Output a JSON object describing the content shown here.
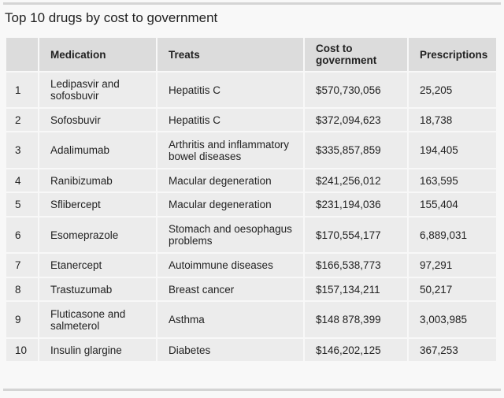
{
  "title": "Top 10 drugs by cost to government",
  "columns": [
    "",
    "Medication",
    "Treats",
    "Cost to government",
    "Prescriptions"
  ],
  "rows": [
    {
      "rank": "1",
      "medication": "Ledipasvir and sofosbuvir",
      "treats": "Hepatitis C",
      "cost": "$570,730,056",
      "prescriptions": "25,205"
    },
    {
      "rank": "2",
      "medication": "Sofosbuvir",
      "treats": "Hepatitis C",
      "cost": "$372,094,623",
      "prescriptions": "18,738"
    },
    {
      "rank": "3",
      "medication": "Adalimumab",
      "treats": "Arthritis and inflammatory bowel diseases",
      "cost": "$335,857,859",
      "prescriptions": "194,405"
    },
    {
      "rank": "4",
      "medication": "Ranibizumab",
      "treats": "Macular degeneration",
      "cost": "$241,256,012",
      "prescriptions": "163,595"
    },
    {
      "rank": "5",
      "medication": "Sflibercept",
      "treats": "Macular degeneration",
      "cost": "$231,194,036",
      "prescriptions": "155,404"
    },
    {
      "rank": "6",
      "medication": "Esomeprazole",
      "treats": "Stomach and oesophagus problems",
      "cost": "$170,554,177",
      "prescriptions": "6,889,031"
    },
    {
      "rank": "7",
      "medication": "Etanercept",
      "treats": "Autoimmune diseases",
      "cost": "$166,538,773",
      "prescriptions": "97,291"
    },
    {
      "rank": "8",
      "medication": "Trastuzumab",
      "treats": "Breast cancer",
      "cost": "$157,134,211",
      "prescriptions": "50,217"
    },
    {
      "rank": "9",
      "medication": "Fluticasone and salmeterol",
      "treats": "Asthma",
      "cost": "$148 878,399",
      "prescriptions": "3,003,985"
    },
    {
      "rank": "10",
      "medication": "Insulin glargine",
      "treats": "Diabetes",
      "cost": "$146,202,125",
      "prescriptions": "367,253"
    }
  ]
}
